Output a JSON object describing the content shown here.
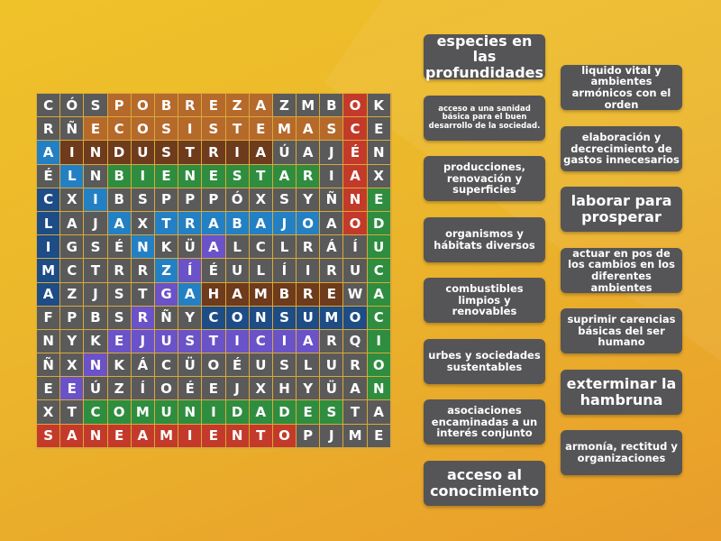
{
  "grid": {
    "rows": [
      "CÓSPOBREZAZMBOK",
      "RÑECOSISTEMASCE",
      "AINDUSTRIAÚAJÉN",
      "ÉLNBIENESTARIAX",
      "CXIBSPPPÓXSYÑNE",
      "LAJAXTRABAJOAOD",
      "IGSÉNKÜALCLRÁÍU",
      "MCTRRZÍÉULÍIRUC",
      "AZJSTGAHAMBREWA",
      "FPBSRÑYCONSUMOC",
      "NYKEJUSTICIARQI",
      "ÑXNKÁCÜOÉUSLURO",
      "EEÚZÍOÉEJXHYÜAN",
      "XTCOMUNIDADESTA",
      "SANEAMIENTOPJME"
    ],
    "highlights": [
      "...ooooooo...r.",
      "..ooooooooooor.",
      "bddddddddd...r.",
      ".b.ggggggggg.r.",
      "n.b..........rg",
      "n..b.bbbbbbb.rg",
      "n...b..p......g",
      "n....bp.......g",
      "n....pbdddddd.g",
      "....p..nnnnnnng",
      "...ppppppppp..g",
      "..p...........g",
      ".p............g",
      "..ggggggggggg..",
      "rrrrrrrrrrr...."
    ],
    "colors": {
      ".": "#5a5a5a",
      "o": "#b5692a",
      "d": "#6e3b1c",
      "g": "#2f8d3f",
      "b": "#2380c4",
      "n": "#1d4c86",
      "p": "#6a52c8",
      "r": "#c33a2a"
    }
  },
  "cards": [
    {
      "text": "especies en las profundidades",
      "size": "l"
    },
    {
      "text": "acceso a una sanidad básica para el buen desarrollo de la sociedad.",
      "size": "s"
    },
    {
      "text": "producciones, renovación y superficies",
      "size": "m"
    },
    {
      "text": "organismos y hábitats diversos",
      "size": "m"
    },
    {
      "text": "combustibles limpios y renovables",
      "size": "m"
    },
    {
      "text": "urbes y sociedades sustentables",
      "size": "m"
    },
    {
      "text": "asociaciones encaminadas a un interés conjunto",
      "size": "m"
    },
    {
      "text": "acceso al conocimiento",
      "size": "l"
    },
    {
      "text": "liquido vital y ambientes armónicos con el orden",
      "size": "m"
    },
    {
      "text": "elaboración y decrecimiento de gastos innecesarios",
      "size": "m"
    },
    {
      "text": "laborar para prosperar",
      "size": "l"
    },
    {
      "text": "actuar en pos de los cambios en los diferentes ambientes",
      "size": "m"
    },
    {
      "text": "suprimir carencias básicas del ser humano",
      "size": "m"
    },
    {
      "text": "exterminar la hambruna",
      "size": "l"
    },
    {
      "text": "armonía, rectitud y organizaciones",
      "size": "m"
    }
  ]
}
